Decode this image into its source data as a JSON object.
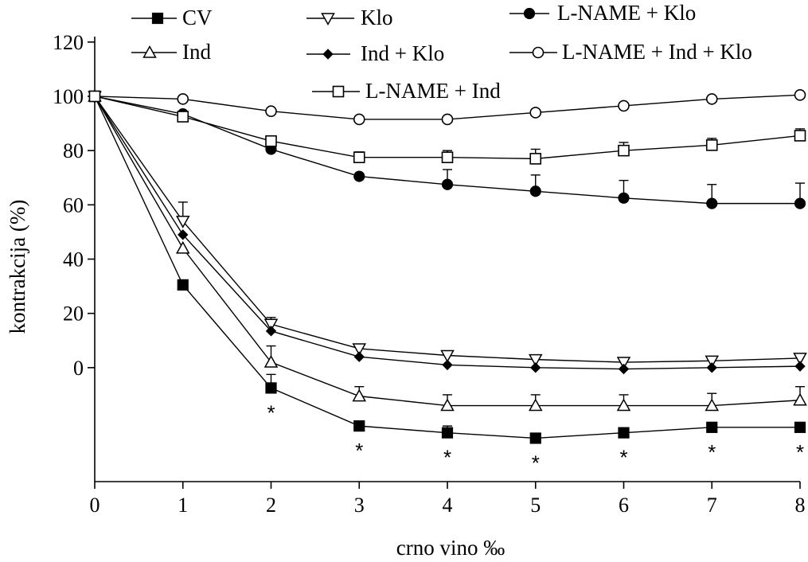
{
  "chart_data": {
    "type": "line",
    "xlabel": "crno vino ‰",
    "ylabel": "kontrakcija (%)",
    "xlim": [
      0,
      8
    ],
    "ylim": [
      -42,
      122
    ],
    "x_ticks": [
      "0",
      "1",
      "2",
      "3",
      "4",
      "5",
      "6",
      "7",
      "8"
    ],
    "y_ticks": [
      "0",
      "20",
      "40",
      "60",
      "80",
      "100",
      "120"
    ],
    "legend_placement": "top",
    "x": [
      0,
      1,
      2,
      3,
      4,
      5,
      6,
      7,
      8
    ],
    "series": [
      {
        "name": "CV",
        "marker": "square-filled",
        "values": [
          100,
          30.5,
          -7.5,
          -21.5,
          -24,
          -26,
          -24,
          -22,
          -22
        ],
        "errors": [
          0,
          0,
          5,
          1.5,
          2.5,
          0,
          0,
          0,
          0
        ]
      },
      {
        "name": "Klo",
        "marker": "triangle-down-open",
        "values": [
          100,
          54,
          16,
          7,
          4.5,
          3,
          2,
          2.5,
          3.5
        ],
        "errors": [
          0,
          7,
          2.5,
          0,
          0,
          0,
          0,
          0,
          0
        ]
      },
      {
        "name": "L-NAME + Klo",
        "marker": "circle-filled",
        "values": [
          100,
          93.5,
          80.5,
          70.5,
          67.5,
          65,
          62.5,
          60.5,
          60.5
        ],
        "errors": [
          0,
          0,
          0,
          0,
          5.5,
          6,
          6.5,
          7,
          7.5
        ]
      },
      {
        "name": "Ind",
        "marker": "triangle-up-open",
        "values": [
          100,
          44,
          2,
          -10.5,
          -14,
          -14,
          -14,
          -14,
          -12
        ],
        "errors": [
          0,
          0,
          6,
          3.5,
          4,
          4,
          4,
          4.5,
          5
        ]
      },
      {
        "name": "Ind + Klo",
        "marker": "diamond-filled",
        "values": [
          100,
          49,
          13.5,
          4,
          1,
          0,
          -0.5,
          0,
          0.5
        ],
        "errors": [
          0,
          0,
          0,
          0,
          0,
          0,
          0,
          0,
          0
        ]
      },
      {
        "name": "L-NAME + Ind + Klo",
        "marker": "circle-open",
        "values": [
          100,
          99,
          94.5,
          91.5,
          91.5,
          94,
          96.5,
          99,
          100.5
        ],
        "errors": [
          0,
          0,
          0,
          0,
          0,
          0,
          0,
          0,
          0
        ]
      },
      {
        "name": "L-NAME + Ind",
        "marker": "square-open",
        "values": [
          100,
          92.5,
          83.5,
          77.5,
          77.5,
          77,
          80,
          82,
          85.5
        ],
        "errors": [
          0,
          0,
          1.5,
          2,
          2.5,
          3.5,
          3,
          2.5,
          2.5
        ]
      }
    ],
    "significance": {
      "symbol": "*",
      "x": [
        2,
        3,
        4,
        5,
        6,
        7,
        8
      ]
    }
  }
}
